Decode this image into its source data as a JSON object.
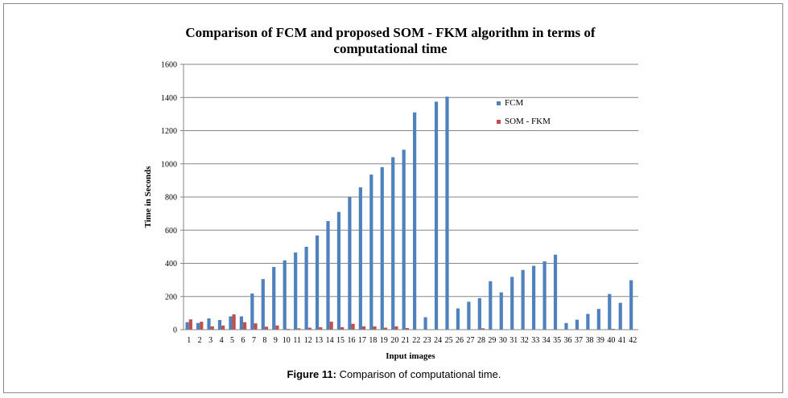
{
  "caption": {
    "label": "Figure 11:",
    "text": " Comparison of computational time."
  },
  "colors": {
    "fcm": "#4f81bd",
    "som_fkm": "#c0504d",
    "grid": "#868686"
  },
  "chart_data": {
    "type": "bar",
    "title_line1": "Comparison of FCM and proposed SOM - FKM algorithm in terms of",
    "title_line2": "computational time",
    "xlabel": "Input  images",
    "ylabel": "Time  in Seconds",
    "ylim": [
      0,
      1600
    ],
    "yticks": [
      0,
      200,
      400,
      600,
      800,
      1000,
      1200,
      1400,
      1600
    ],
    "grid": true,
    "legend_position": "right",
    "categories": [
      "1",
      "2",
      "3",
      "4",
      "5",
      "6",
      "7",
      "8",
      "9",
      "10",
      "11",
      "12",
      "13",
      "14",
      "15",
      "16",
      "17",
      "18",
      "19",
      "20",
      "21",
      "22",
      "23",
      "24",
      "25",
      "26",
      "27",
      "28",
      "29",
      "30",
      "31",
      "32",
      "33",
      "34",
      "35",
      "36",
      "37",
      "38",
      "39",
      "40",
      "41",
      "42"
    ],
    "series": [
      {
        "name": "FCM",
        "values": [
          45,
          40,
          68,
          58,
          80,
          80,
          218,
          305,
          378,
          418,
          465,
          500,
          568,
          655,
          710,
          800,
          858,
          935,
          980,
          1040,
          1085,
          1310,
          75,
          1375,
          1405,
          128,
          168,
          190,
          292,
          225,
          318,
          360,
          385,
          412,
          452,
          40,
          60,
          95,
          125,
          215,
          162,
          298
        ]
      },
      {
        "name": "SOM - FKM",
        "values": [
          62,
          48,
          20,
          25,
          92,
          45,
          38,
          18,
          25,
          5,
          8,
          12,
          15,
          48,
          15,
          35,
          20,
          20,
          12,
          20,
          10,
          0,
          0,
          0,
          0,
          0,
          0,
          8,
          0,
          0,
          0,
          0,
          0,
          0,
          0,
          0,
          0,
          0,
          0,
          5,
          0,
          0
        ]
      }
    ]
  }
}
